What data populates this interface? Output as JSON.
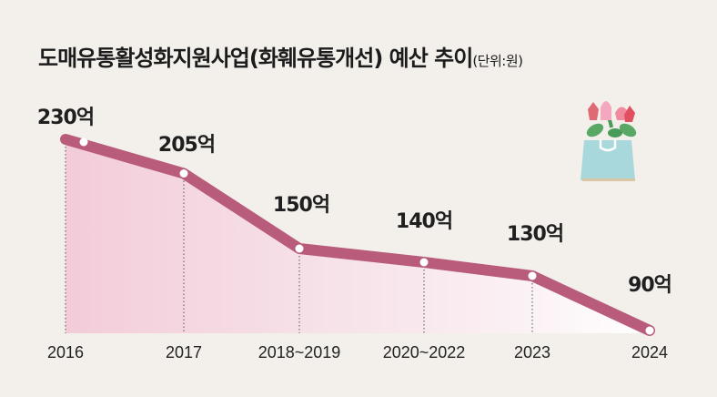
{
  "title": "도매유통활성화지원사업(화훼유통개선) 예산 추이",
  "unit": "(단위:원)",
  "chart_data": {
    "type": "line",
    "title": "도매유통활성화지원사업(화훼유통개선) 예산 추이",
    "unit": "(단위:원)",
    "categories": [
      "2016",
      "2017",
      "2018~2019",
      "2020~2022",
      "2023",
      "2024"
    ],
    "values": [
      230,
      205,
      150,
      140,
      130,
      90
    ],
    "labels": [
      "230억",
      "205억",
      "150억",
      "140억",
      "130억",
      "90억"
    ],
    "ylim": [
      0,
      260
    ],
    "colors": {
      "line": "#b95b7a",
      "area": "#f3c9d8",
      "background": "#f3f0eb"
    },
    "icon": "flower-bouquet-bag-icon"
  }
}
